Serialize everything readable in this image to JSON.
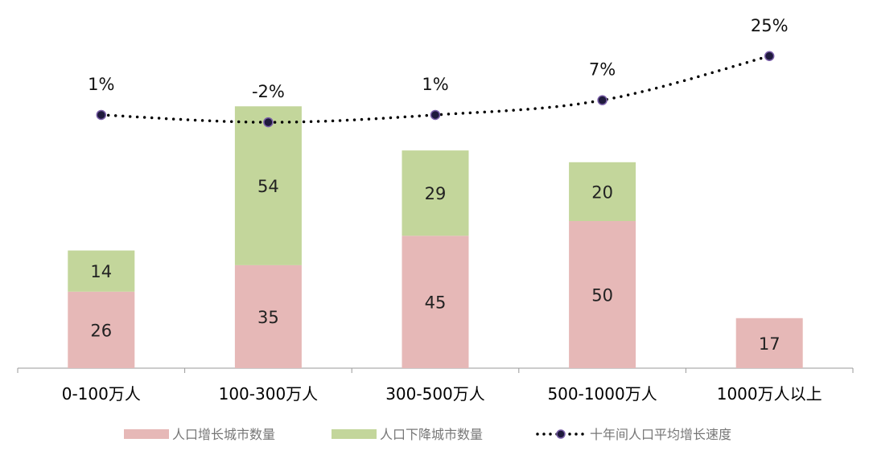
{
  "chart_data": {
    "type": "bar",
    "stacked": true,
    "title": "",
    "categories": [
      "0-100万人",
      "100-300万人",
      "300-500万人",
      "500-1000万人",
      "1000万人以上"
    ],
    "series": [
      {
        "name": "人口增长城市数量",
        "type": "bar",
        "color": "#e6b8b7",
        "values": [
          26,
          35,
          45,
          50,
          17
        ]
      },
      {
        "name": "人口下降城市数量",
        "type": "bar",
        "color": "#c3d69b",
        "values": [
          14,
          54,
          29,
          20,
          null
        ]
      },
      {
        "name": "十年间人口平均增长速度",
        "type": "line",
        "style": "dotted",
        "color": "#000000",
        "marker_color": "#1f1a3d",
        "marker_stroke": "#7a5fa8",
        "values": [
          1,
          -2,
          1,
          7,
          25
        ],
        "labels": [
          "1%",
          "-2%",
          "1%",
          "7%",
          "25%"
        ]
      }
    ],
    "ylim": [
      0,
      90
    ],
    "y2_unit": "%",
    "grid": false,
    "legend": "bottom"
  }
}
